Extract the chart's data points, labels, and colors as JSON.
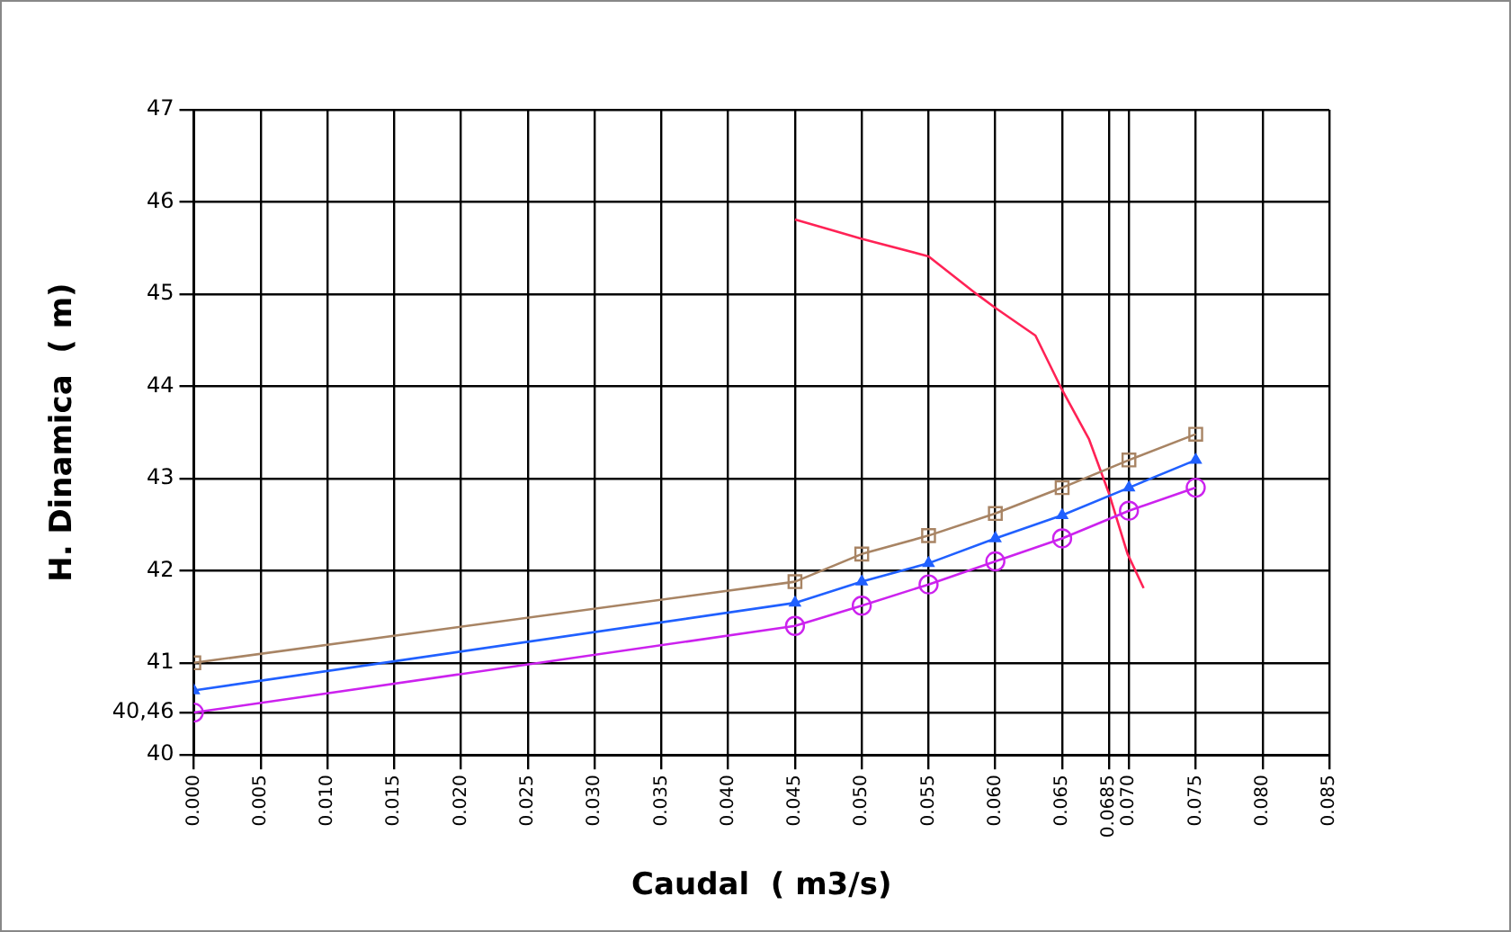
{
  "chart_data": {
    "type": "line",
    "xlabel": "Caudal  ( m3/s)",
    "ylabel": "H. Dinamica  ( m)",
    "xlim": [
      0,
      0.085
    ],
    "ylim": [
      40,
      47
    ],
    "xticks": [
      {
        "value": 0,
        "label": "0.000"
      },
      {
        "value": 0.005,
        "label": "0.005"
      },
      {
        "value": 0.01,
        "label": "0.010"
      },
      {
        "value": 0.015,
        "label": "0.015"
      },
      {
        "value": 0.02,
        "label": "0.020"
      },
      {
        "value": 0.025,
        "label": "0.025"
      },
      {
        "value": 0.03,
        "label": "0.030"
      },
      {
        "value": 0.035,
        "label": "0.035"
      },
      {
        "value": 0.04,
        "label": "0.040"
      },
      {
        "value": 0.045,
        "label": "0.045"
      },
      {
        "value": 0.05,
        "label": "0.050"
      },
      {
        "value": 0.055,
        "label": "0.055"
      },
      {
        "value": 0.06,
        "label": "0.060"
      },
      {
        "value": 0.065,
        "label": "0.065"
      },
      {
        "value": 0.0685,
        "label": "0.0685"
      },
      {
        "value": 0.07,
        "label": "0.070"
      },
      {
        "value": 0.075,
        "label": "0.075"
      },
      {
        "value": 0.08,
        "label": "0.080"
      },
      {
        "value": 0.085,
        "label": "0.085"
      }
    ],
    "yticks": [
      40,
      {
        "value": 40.46,
        "label": "40,46"
      },
      41,
      42,
      43,
      44,
      45,
      46,
      47
    ],
    "grid": true,
    "legend": false,
    "line_style": "solid",
    "series": [
      {
        "color": "#a88464",
        "marker": "square",
        "x": [
          0,
          0.045,
          0.05,
          0.055,
          0.06,
          0.065,
          0.07,
          0.075
        ],
        "values": [
          41.0,
          41.88,
          42.18,
          42.38,
          42.62,
          42.9,
          43.2,
          43.48
        ]
      },
      {
        "color": "#2060ff",
        "marker": "triangle",
        "x": [
          0,
          0.045,
          0.05,
          0.055,
          0.06,
          0.065,
          0.07,
          0.075
        ],
        "values": [
          40.7,
          41.65,
          41.88,
          42.08,
          42.35,
          42.6,
          42.9,
          43.2
        ]
      },
      {
        "color": "#cc22ee",
        "marker": "circle",
        "x": [
          0,
          0.045,
          0.05,
          0.055,
          0.06,
          0.065,
          0.07,
          0.075
        ],
        "values": [
          40.46,
          41.4,
          41.62,
          41.85,
          42.1,
          42.35,
          42.65,
          42.9
        ]
      },
      {
        "color": "#ff2255",
        "marker": "none",
        "x": [
          0.045,
          0.05,
          0.055,
          0.0586,
          0.06,
          0.063,
          0.065,
          0.067,
          0.0685,
          0.0699,
          0.0711
        ],
        "values": [
          45.81,
          45.6,
          45.41,
          45.0,
          44.85,
          44.55,
          43.96,
          43.43,
          42.84,
          42.18,
          41.81
        ]
      }
    ]
  }
}
